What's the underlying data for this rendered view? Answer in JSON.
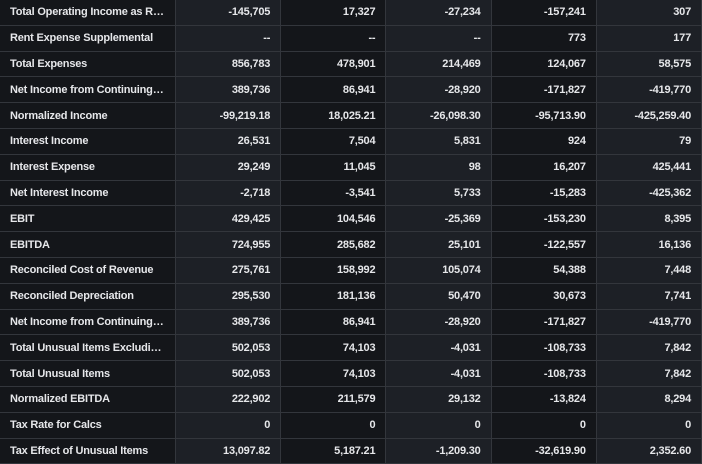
{
  "rows": [
    {
      "label": "Total Operating Income as Repor...",
      "values": [
        "-145,705",
        "17,327",
        "-27,234",
        "-157,241",
        "307"
      ]
    },
    {
      "label": "Rent Expense Supplemental",
      "values": [
        "--",
        "--",
        "--",
        "773",
        "177"
      ]
    },
    {
      "label": "Total Expenses",
      "values": [
        "856,783",
        "478,901",
        "214,469",
        "124,067",
        "58,575"
      ]
    },
    {
      "label": "Net Income from Continuing & D...",
      "values": [
        "389,736",
        "86,941",
        "-28,920",
        "-171,827",
        "-419,770"
      ]
    },
    {
      "label": "Normalized Income",
      "values": [
        "-99,219.18",
        "18,025.21",
        "-26,098.30",
        "-95,713.90",
        "-425,259.40"
      ]
    },
    {
      "label": "Interest Income",
      "values": [
        "26,531",
        "7,504",
        "5,831",
        "924",
        "79"
      ]
    },
    {
      "label": "Interest Expense",
      "values": [
        "29,249",
        "11,045",
        "98",
        "16,207",
        "425,441"
      ]
    },
    {
      "label": "Net Interest Income",
      "values": [
        "-2,718",
        "-3,541",
        "5,733",
        "-15,283",
        "-425,362"
      ]
    },
    {
      "label": "EBIT",
      "values": [
        "429,425",
        "104,546",
        "-25,369",
        "-153,230",
        "8,395"
      ]
    },
    {
      "label": "EBITDA",
      "values": [
        "724,955",
        "285,682",
        "25,101",
        "-122,557",
        "16,136"
      ]
    },
    {
      "label": "Reconciled Cost of Revenue",
      "values": [
        "275,761",
        "158,992",
        "105,074",
        "54,388",
        "7,448"
      ]
    },
    {
      "label": "Reconciled Depreciation",
      "values": [
        "295,530",
        "181,136",
        "50,470",
        "30,673",
        "7,741"
      ]
    },
    {
      "label": "Net Income from Continuing Op...",
      "values": [
        "389,736",
        "86,941",
        "-28,920",
        "-171,827",
        "-419,770"
      ]
    },
    {
      "label": "Total Unusual Items Excluding G...",
      "values": [
        "502,053",
        "74,103",
        "-4,031",
        "-108,733",
        "7,842"
      ]
    },
    {
      "label": "Total Unusual Items",
      "values": [
        "502,053",
        "74,103",
        "-4,031",
        "-108,733",
        "7,842"
      ]
    },
    {
      "label": "Normalized EBITDA",
      "values": [
        "222,902",
        "211,579",
        "29,132",
        "-13,824",
        "8,294"
      ]
    },
    {
      "label": "Tax Rate for Calcs",
      "values": [
        "0",
        "0",
        "0",
        "0",
        "0"
      ]
    },
    {
      "label": "Tax Effect of Unusual Items",
      "values": [
        "13,097.82",
        "5,187.21",
        "-1,209.30",
        "-32,619.90",
        "2,352.60"
      ]
    }
  ]
}
